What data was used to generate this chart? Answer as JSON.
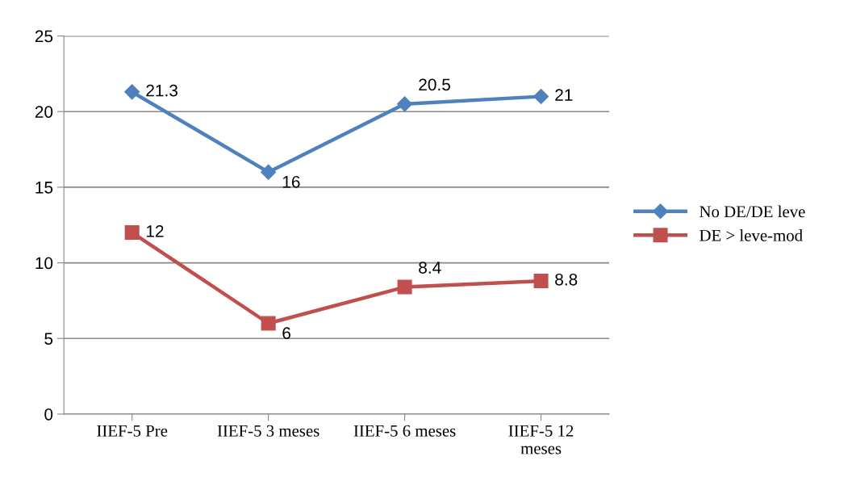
{
  "chart_data": {
    "type": "line",
    "categories": [
      "IIEF-5 Pre",
      "IIEF-5 3 meses",
      "IIEF-5 6 meses",
      "IIEF-5 12\nmeses"
    ],
    "series": [
      {
        "name": "No DE/DE leve",
        "color": "#4f81bd",
        "marker": "diamond",
        "values": [
          21.3,
          16,
          20.5,
          21
        ]
      },
      {
        "name": "DE > leve-mod",
        "color": "#c0504d",
        "marker": "square",
        "values": [
          12,
          6,
          8.4,
          8.8
        ]
      }
    ],
    "ylim": [
      0,
      25
    ],
    "yticks": [
      0,
      5,
      10,
      15,
      20,
      25
    ],
    "grid": "y",
    "legend": "right",
    "data_labels": true,
    "line_style": "solid"
  }
}
